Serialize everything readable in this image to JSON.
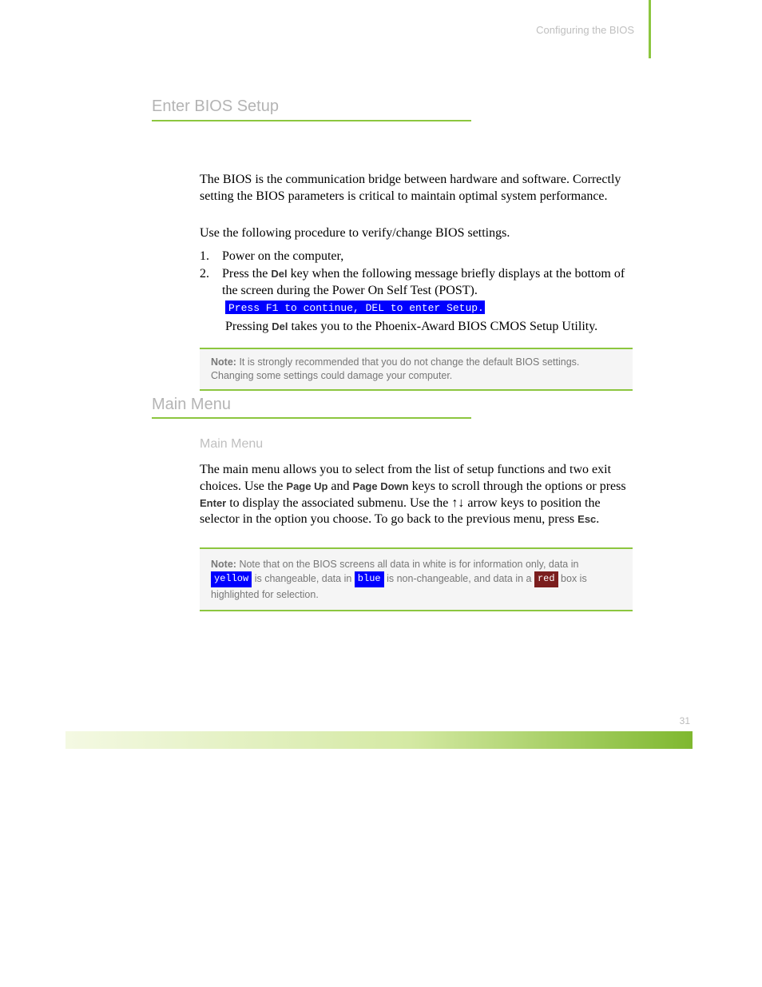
{
  "header": {
    "breadcrumb": "Configuring the BIOS"
  },
  "section1": {
    "title": "Enter BIOS Setup",
    "p1": "The BIOS is the communication bridge between hardware and software. Correctly setting the BIOS parameters is critical to maintain optimal system performance.",
    "p2": "Use the following procedure to verify/change BIOS settings.",
    "li1_num": "1.",
    "li1": "Power on the computer,",
    "li2_num": "2.",
    "li2_a": "Press the ",
    "li2_key": "Del",
    "li2_b": " key when the following message briefly displays at the bottom of the screen during the Power On Self Test (POST).",
    "bios_msg": "Press F1 to continue, DEL to enter Setup.",
    "p3_a": "Pressing ",
    "p3_key": "Del",
    "p3_b": " takes you to the Phoenix-Award BIOS CMOS Setup Utility.",
    "note_label": "Note:",
    "note": "It is strongly recommended that you do not change the default BIOS settings. Changing some settings could damage your computer."
  },
  "section2": {
    "title": "Main Menu",
    "p_a": "The main menu allows you to select from the list of setup functions and two exit choices. Use the ",
    "k1": "Page Up",
    "p_b": " and ",
    "k2": "Page Down",
    "p_c": " keys to scroll through the options or press ",
    "k3": "Enter",
    "p_d": " to display the associated submenu. Use the ",
    "arrows": "↑↓",
    "p_e": " arrow keys to position the selector in the option you choose. To go back to the previous menu, press ",
    "k4": "Esc",
    "p_f": ".",
    "note_label": "Note:",
    "note_a": "Note that on the BIOS screens all data in ",
    "chip_white": "white",
    "note_b": " is for information only, data in ",
    "chip_yellow": "yellow",
    "note_c": " is changeable, data in ",
    "chip_blue": "blue",
    "note_d": " is non-changeable, and data in a ",
    "chip_red": "red",
    "note_e": " box is highlighted for selection."
  },
  "footer": {
    "page": "31"
  },
  "colors": {
    "accent": "#8cc63f",
    "blue": "#0000ff",
    "red": "#7b1e1e",
    "gray_text": "#bfbfbf",
    "note_bg": "#f5f5f5"
  }
}
